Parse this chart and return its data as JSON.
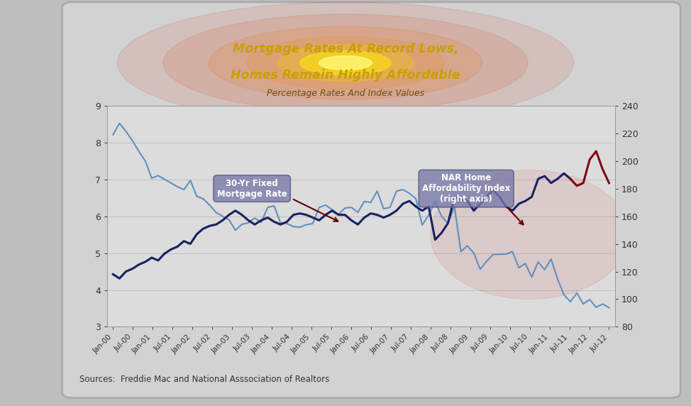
{
  "title_line1": "Mortgage Rates At Record Lows,",
  "title_line2": "Homes Remain Highly Affordable",
  "subtitle": "Percentage Rates And Index Values",
  "source_text": "Sources:  Freddie Mac and National Asssociation of Realtors",
  "bg_color": "#cccccc",
  "plot_bg_color": "#e0e0e0",
  "title_color": "#c8a000",
  "subtitle_color": "#8b6914",
  "left_ylim": [
    3,
    9
  ],
  "right_ylim": [
    80,
    240
  ],
  "left_yticks": [
    3,
    4,
    5,
    6,
    7,
    8,
    9
  ],
  "right_yticks": [
    80,
    100,
    120,
    140,
    160,
    180,
    200,
    220,
    240
  ],
  "mortgage_color": "#6090c0",
  "affordability_navy": "#1a2060",
  "affordability_red": "#7b0a14",
  "label_box_color": "#7878a8",
  "xtick_labels": [
    "Jan-00",
    "Jul-00",
    "Jan-01",
    "Jul-01",
    "Jan-02",
    "Jul-02",
    "Jan-03",
    "Jul-03",
    "Jan-04",
    "Jul-04",
    "Jan-05",
    "Jul-05",
    "Jan-06",
    "Jul-06",
    "Jan-07",
    "Jul-07",
    "Jan-08",
    "Jul-08",
    "Jan-09",
    "Jul-09",
    "Jan-10",
    "Jul-10",
    "Jan-11",
    "Jul-11",
    "Jan-12",
    "Jul-12"
  ],
  "mortgage_rates": [
    8.21,
    8.52,
    8.3,
    8.05,
    7.76,
    7.5,
    7.03,
    7.1,
    7.0,
    6.9,
    6.8,
    6.72,
    6.97,
    6.54,
    6.47,
    6.3,
    6.1,
    6.0,
    5.9,
    5.62,
    5.78,
    5.82,
    5.95,
    5.83,
    6.24,
    6.28,
    5.82,
    5.8,
    5.72,
    5.7,
    5.77,
    5.8,
    6.24,
    6.3,
    6.18,
    6.05,
    6.22,
    6.24,
    6.1,
    6.4,
    6.37,
    6.68,
    6.2,
    6.24,
    6.68,
    6.72,
    6.62,
    6.48,
    5.76,
    6.03,
    6.4,
    6.0,
    5.8,
    6.26,
    5.04,
    5.2,
    5.0,
    4.56,
    4.78,
    4.96,
    4.97,
    4.97,
    5.04,
    4.6,
    4.72,
    4.35,
    4.76,
    4.55,
    4.84,
    4.3,
    3.87,
    3.68,
    3.92,
    3.62,
    3.74,
    3.53,
    3.62,
    3.52
  ],
  "affordability_index": [
    118,
    115,
    120,
    122,
    125,
    127,
    130,
    128,
    133,
    136,
    138,
    142,
    140,
    147,
    151,
    153,
    154,
    157,
    161,
    164,
    161,
    157,
    154,
    157,
    159,
    156,
    154,
    156,
    161,
    162,
    161,
    159,
    157,
    161,
    164,
    161,
    161,
    157,
    154,
    159,
    162,
    161,
    159,
    161,
    164,
    169,
    171,
    167,
    164,
    167,
    143,
    148,
    155,
    174,
    172,
    171,
    164,
    169,
    174,
    179,
    174,
    167,
    164,
    169,
    171,
    174,
    187,
    189,
    184,
    187,
    191,
    187,
    182,
    184,
    201,
    207,
    194,
    184
  ],
  "navy_split_idx": 60,
  "red_split_idx": 72
}
